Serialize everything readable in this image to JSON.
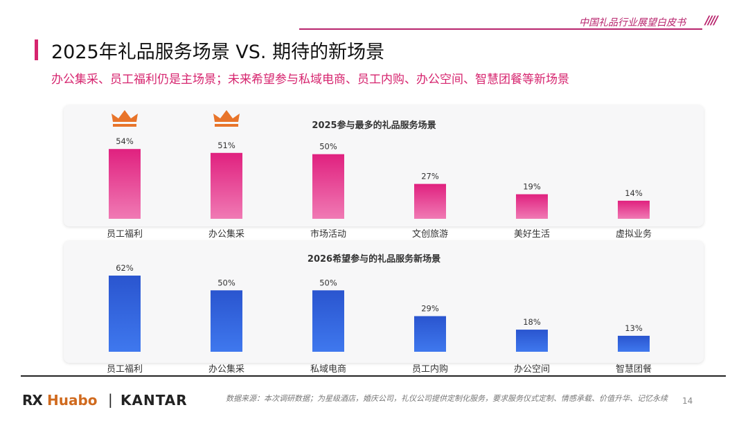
{
  "header": {
    "brand": "中国礼品行业展望白皮书",
    "slashes": "////"
  },
  "title": "2025年礼品服务场景 VS. 期待的新场景",
  "subtitle": "办公集采、员工福利仍是主场景；未来希望参与私域电商、员工内购、办公空间、智慧团餐等新场景",
  "chart_data": [
    {
      "type": "bar",
      "title": "2025参与最多的礼品服务场景",
      "categories": [
        "员工福利",
        "办公集采",
        "市场活动",
        "文创旅游",
        "美好生活",
        "虚拟业务"
      ],
      "values": [
        54,
        51,
        50,
        27,
        19,
        14
      ],
      "value_labels": [
        "54%",
        "51%",
        "50%",
        "27%",
        "19%",
        "14%"
      ],
      "crowned": [
        0,
        1
      ],
      "color": "#e23a8f",
      "ylim": [
        0,
        60
      ]
    },
    {
      "type": "bar",
      "title": "2026希望参与的礼品服务新场景",
      "categories": [
        "员工福利",
        "办公集采",
        "私域电商",
        "员工内购",
        "办公空间",
        "智慧团餐"
      ],
      "values": [
        62,
        50,
        50,
        29,
        18,
        13
      ],
      "value_labels": [
        "62%",
        "50%",
        "50%",
        "29%",
        "18%",
        "13%"
      ],
      "crowned": [],
      "color": "#2f5fd6",
      "ylim": [
        0,
        62
      ]
    }
  ],
  "colors": {
    "accent": "#d6246e",
    "pink_bar": "#e23a8f",
    "blue_bar": "#2f5fd6",
    "crown": "#e8742a"
  },
  "footer": {
    "logo_rx": "RX",
    "logo_huabo": "Huabo",
    "separator": "|",
    "logo_kantar": "KANTAR",
    "source": "数据来源：本次调研数据；为星级酒店，婚庆公司，礼仪公司提供定制化服务，要求服务仪式定制、情感承载、价值升华、记忆永续",
    "page": "14"
  }
}
